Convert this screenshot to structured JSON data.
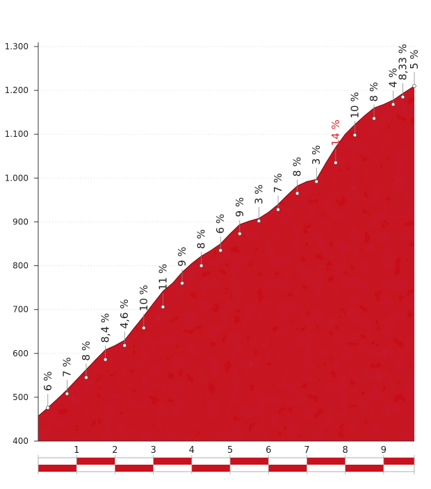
{
  "chart_data": {
    "type": "area",
    "title": "",
    "xlabel": "",
    "ylabel": "",
    "xlim": [
      0,
      9.8
    ],
    "ylim": [
      400,
      1300
    ],
    "grid": "horizontal-dotted",
    "fill_color": "#c8121d",
    "highlight_color": "#d9262b",
    "y_ticks": [
      "400",
      "500",
      "600",
      "700",
      "800",
      "900",
      "1.000",
      "1.100",
      "1.200",
      "1.300"
    ],
    "y_tick_values": [
      400,
      500,
      600,
      700,
      800,
      900,
      1000,
      1100,
      1200,
      1300
    ],
    "x_ticks": [
      "1",
      "2",
      "3",
      "4",
      "5",
      "6",
      "7",
      "8",
      "9"
    ],
    "x_tick_values": [
      1,
      2,
      3,
      4,
      5,
      6,
      7,
      8,
      9
    ],
    "profile": [
      [
        0.0,
        457
      ],
      [
        0.25,
        476
      ],
      [
        0.5,
        496
      ],
      [
        0.75,
        517
      ],
      [
        1.0,
        540
      ],
      [
        1.25,
        563
      ],
      [
        1.5,
        586
      ],
      [
        1.75,
        608
      ],
      [
        2.0,
        618
      ],
      [
        2.25,
        630
      ],
      [
        2.5,
        658
      ],
      [
        2.75,
        685
      ],
      [
        3.0,
        714
      ],
      [
        3.25,
        742
      ],
      [
        3.5,
        760
      ],
      [
        3.75,
        785
      ],
      [
        4.0,
        805
      ],
      [
        4.25,
        822
      ],
      [
        4.5,
        835
      ],
      [
        4.75,
        850
      ],
      [
        5.0,
        873
      ],
      [
        5.25,
        894
      ],
      [
        5.5,
        902
      ],
      [
        5.75,
        908
      ],
      [
        6.0,
        922
      ],
      [
        6.25,
        940
      ],
      [
        6.5,
        962
      ],
      [
        6.75,
        982
      ],
      [
        7.0,
        992
      ],
      [
        7.25,
        997
      ],
      [
        7.5,
        1035
      ],
      [
        7.75,
        1070
      ],
      [
        8.0,
        1100
      ],
      [
        8.25,
        1122
      ],
      [
        8.5,
        1142
      ],
      [
        8.75,
        1160
      ],
      [
        9.0,
        1168
      ],
      [
        9.25,
        1178
      ],
      [
        9.5,
        1193
      ],
      [
        9.8,
        1210
      ]
    ],
    "gradient_labels": [
      {
        "x": 0.25,
        "y": 476,
        "label": "6 %"
      },
      {
        "x": 0.75,
        "y": 508,
        "label": "7 %"
      },
      {
        "x": 1.25,
        "y": 545,
        "label": "8 %"
      },
      {
        "x": 1.75,
        "y": 586,
        "label": "8,4 %"
      },
      {
        "x": 2.25,
        "y": 618,
        "label": "4,6 %"
      },
      {
        "x": 2.75,
        "y": 658,
        "label": "10 %"
      },
      {
        "x": 3.25,
        "y": 706,
        "label": "11 %"
      },
      {
        "x": 3.75,
        "y": 760,
        "label": "9 %"
      },
      {
        "x": 4.25,
        "y": 800,
        "label": "8 %"
      },
      {
        "x": 4.75,
        "y": 835,
        "label": "6 %"
      },
      {
        "x": 5.25,
        "y": 873,
        "label": "9 %"
      },
      {
        "x": 5.75,
        "y": 902,
        "label": "3 %"
      },
      {
        "x": 6.25,
        "y": 928,
        "label": "7 %"
      },
      {
        "x": 6.75,
        "y": 965,
        "label": "8 %"
      },
      {
        "x": 7.25,
        "y": 992,
        "label": "3 %"
      },
      {
        "x": 7.75,
        "y": 1035,
        "label": "14 %",
        "highlight": true
      },
      {
        "x": 8.25,
        "y": 1098,
        "label": "10 %"
      },
      {
        "x": 8.75,
        "y": 1136,
        "label": "8 %"
      },
      {
        "x": 9.25,
        "y": 1168,
        "label": "4 %"
      },
      {
        "x": 9.5,
        "y": 1185,
        "label": "8,33 %"
      },
      {
        "x": 9.8,
        "y": 1210,
        "label": "5 %"
      }
    ]
  }
}
